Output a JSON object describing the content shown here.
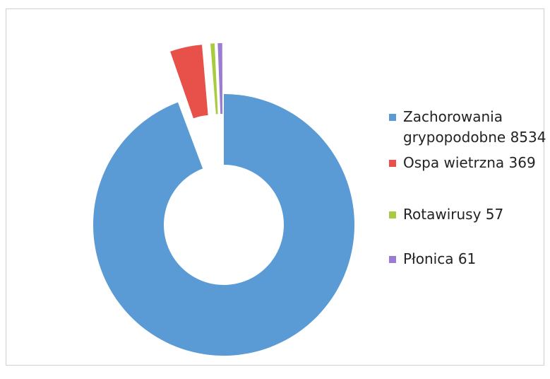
{
  "chart_data": {
    "type": "pie",
    "style": "exploded-donut",
    "categories": [
      "Zachorowania grypopodobne",
      "Ospa wietrzna",
      "Rotawirusy",
      "Płonica"
    ],
    "values": [
      8534,
      369,
      57,
      61
    ],
    "colors": [
      "#5b9bd5",
      "#e8514a",
      "#a9cc3f",
      "#9b7bd4"
    ],
    "legend_labels": [
      "Zachorowania\ngrypopodobne 8534",
      "Ospa wietrzna  369",
      "Rotawirusy  57",
      "Płonica  61"
    ],
    "legend_position": "right",
    "exploded_categories": [
      "Ospa wietrzna",
      "Rotawirusy",
      "Płonica"
    ]
  }
}
